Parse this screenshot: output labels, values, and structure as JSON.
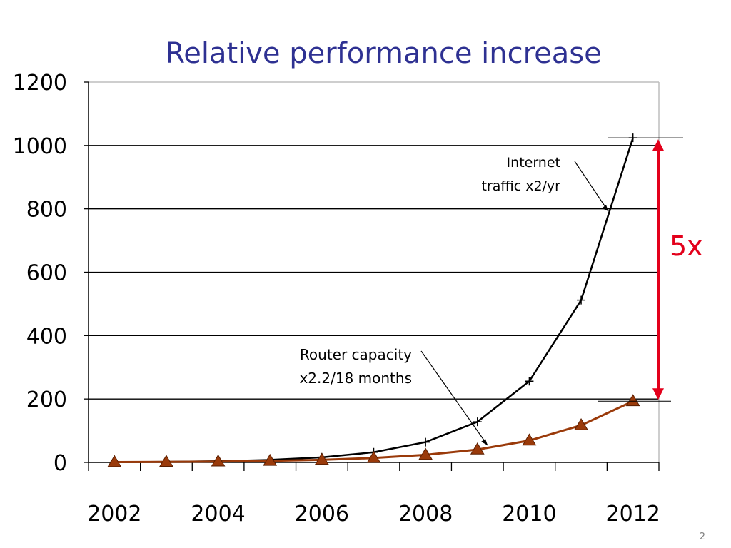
{
  "chart_data": {
    "type": "line",
    "title": "Relative performance increase",
    "x": [
      2002,
      2003,
      2004,
      2005,
      2006,
      2007,
      2008,
      2009,
      2010,
      2011,
      2012
    ],
    "x_ticks": [
      2002,
      2004,
      2006,
      2008,
      2010,
      2012
    ],
    "xlim": [
      2002,
      2013
    ],
    "y_ticks": [
      0,
      200,
      400,
      600,
      800,
      1000,
      1200
    ],
    "ylim": [
      0,
      1200
    ],
    "grid": true,
    "series": [
      {
        "values": [
          1,
          2,
          4,
          8,
          16,
          32,
          64,
          128,
          256,
          512,
          1024
        ],
        "color": "#000000",
        "marker": "plus"
      },
      {
        "values": [
          1,
          1.7,
          2.9,
          4.8,
          8.2,
          14,
          23.8,
          40.5,
          68.9,
          117.1,
          193
        ],
        "color": "#9a3a0a",
        "marker": "triangle"
      }
    ],
    "annotations": {
      "internet": {
        "line1": "Internet",
        "line2": "traffic x2/yr"
      },
      "router": {
        "line1": "Router capacity",
        "line2": "x2.2/18 months"
      },
      "gap_label": "5x",
      "gap_color": "#e3001b"
    }
  },
  "page_number": "2"
}
